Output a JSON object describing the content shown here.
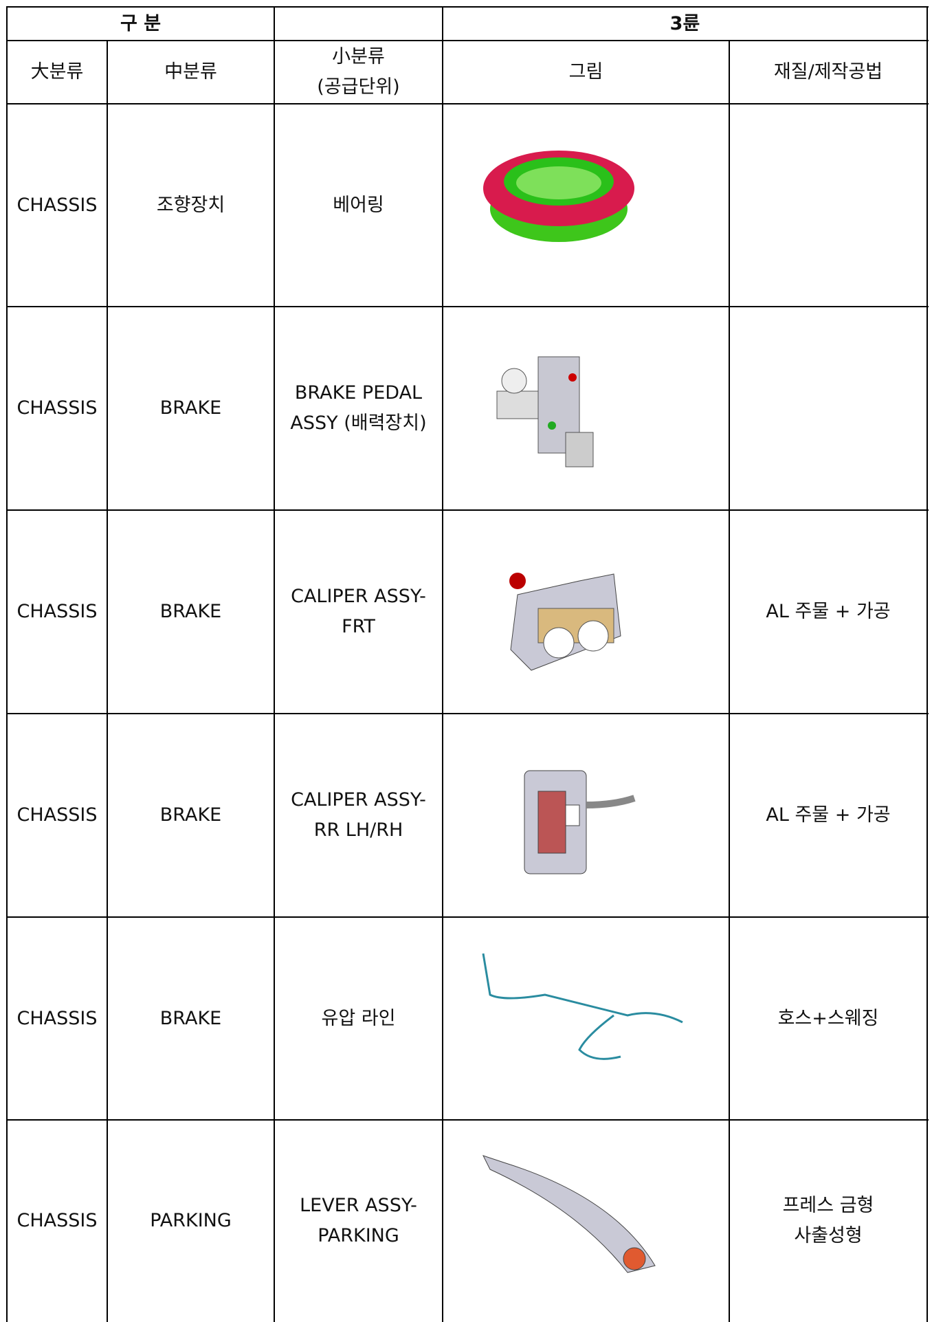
{
  "table": {
    "group_header": [
      "구 분",
      "3륜"
    ],
    "columns": [
      "大분류",
      "中분류",
      [
        "小분류",
        "(공급단위)"
      ],
      "그림",
      "재질/제작공법"
    ],
    "rows": [
      {
        "major": "CHASSIS",
        "mid": "조향장치",
        "minor": [
          "베어링"
        ]
      },
      {
        "major": "CHASSIS",
        "mid": "BRAKE",
        "minor": [
          "BRAKE PEDAL",
          "ASSY (배력장치)"
        ]
      },
      {
        "major": "CHASSIS",
        "mid": "BRAKE",
        "minor": [
          "CALIPER ASSY-",
          "FRT"
        ],
        "material": [
          "AL 주물 + 가공"
        ]
      },
      {
        "major": "CHASSIS",
        "mid": "BRAKE",
        "minor": [
          "CALIPER ASSY-",
          "RR LH/RH"
        ],
        "material": [
          "AL 주물 + 가공"
        ]
      },
      {
        "major": "CHASSIS",
        "mid": "BRAKE",
        "minor": [
          "유압 라인"
        ],
        "material": [
          "호스+스웨징"
        ]
      },
      {
        "major": "CHASSIS",
        "mid": "PARKING",
        "minor": [
          "LEVER ASSY-",
          "PARKING"
        ],
        "material": [
          "프레스 금형",
          "사출성형"
        ]
      }
    ]
  }
}
